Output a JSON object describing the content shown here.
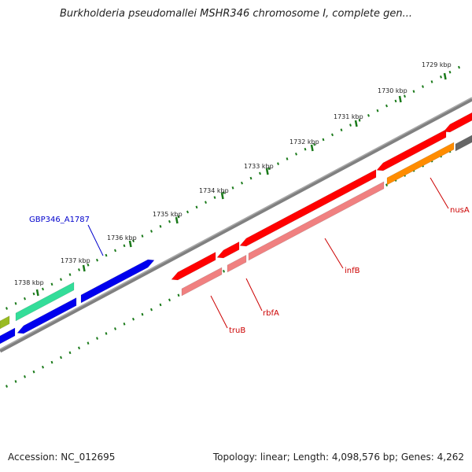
{
  "title": "Burkholderia pseudomallei MSHR346 chromosome I, complete gen...",
  "footer": {
    "accession": "Accession: NC_012695",
    "summary": "Topology: linear; Length: 4,098,576 bp; Genes: 4,262"
  },
  "colors": {
    "tick": "#1a7a1a",
    "backbone": "#808080",
    "red": "#ff0000",
    "pink": "#f08080",
    "orange": "#ff8c00",
    "blue": "#0000ee",
    "teal": "#33dd99",
    "olive": "#99bb22",
    "gray": "#666666",
    "label_blue": "#0000cc",
    "label_red": "#cc0000"
  },
  "ruler": {
    "unit": "kbp",
    "labels": [
      "1729 kbp",
      "1730 kbp",
      "1731 kbp",
      "1732 kbp",
      "1733 kbp",
      "1734 kbp",
      "1735 kbp",
      "1736 kbp",
      "1737 kbp",
      "1738 kbp"
    ]
  },
  "gene_labels": [
    {
      "name": "GBP346_A1787",
      "color": "label_blue"
    },
    {
      "name": "nusA",
      "color": "label_red"
    },
    {
      "name": "infB",
      "color": "label_red"
    },
    {
      "name": "rbfA",
      "color": "label_red"
    },
    {
      "name": "truB",
      "color": "label_red"
    }
  ]
}
